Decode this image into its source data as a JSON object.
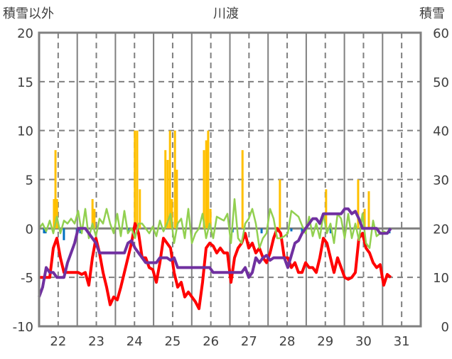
{
  "chart_data": {
    "type": "line",
    "title": "川渡",
    "left_axis_label": "積雪以外",
    "right_axis_label": "積雪",
    "left_ylim": [
      -10,
      20
    ],
    "left_ticks": [
      "20",
      "15",
      "10",
      "5",
      "0",
      "-5",
      "-10"
    ],
    "right_ylim": [
      0,
      60
    ],
    "right_ticks": [
      "60",
      "50",
      "40",
      "30",
      "20",
      "10",
      "0"
    ],
    "x_range_days": [
      0,
      10
    ],
    "x_ticks": [
      "22",
      "23",
      "24",
      "25",
      "26",
      "27",
      "28",
      "29",
      "30",
      "31"
    ],
    "grid": "dashed vertical at noon, solid vertical at midnight, dashed horizontal",
    "colors": {
      "red": "#ff0000",
      "green": "#92d050",
      "purple": "#7030a0",
      "orange": "#ffc000",
      "blue": "#0070c0",
      "grid": "#808080"
    },
    "series_step_days": 0.0931,
    "series": [
      {
        "name": "red",
        "axis": "left",
        "color": "#ff0000",
        "values": [
          -5,
          -5,
          -5,
          -5,
          -2,
          -1,
          -3,
          -4.5,
          -4.5,
          -4.5,
          -4.5,
          -4.5,
          -4.7,
          -4.5,
          -5.8,
          -3,
          -1,
          -2.5,
          -4.5,
          -6,
          -7.8,
          -7,
          -7.3,
          -6,
          -4.5,
          -3,
          -1.5,
          0.5,
          -0.5,
          -3,
          -3,
          -4,
          -4.2,
          -5.5,
          -3.5,
          -1,
          -1.5,
          -2,
          -4.5,
          -6,
          -5.5,
          -7,
          -6.5,
          -7,
          -7.5,
          -8.2,
          -5.5,
          -2,
          -1.5,
          -1.8,
          -2.5,
          -2,
          -2.5,
          -2.5,
          -5.5,
          -3,
          -2,
          -1.5,
          -0.5,
          -2,
          -1.5,
          -2.5,
          -2,
          -3,
          -3.5,
          -2.5,
          -1,
          0,
          -0.5,
          -3,
          -3,
          -4,
          -3.5,
          -4.5,
          -4.5,
          -3.5,
          -4,
          -4,
          -4.5,
          -3,
          -1,
          -1.5,
          -3,
          -4.5,
          -3,
          -4,
          -5,
          -5.2,
          -5,
          -4.5,
          -1,
          -0.5,
          -2,
          -2.5,
          -3.5,
          -4,
          -3.7,
          -5.8,
          -4.7,
          -5
        ]
      },
      {
        "name": "green",
        "axis": "left",
        "color": "#92d050",
        "values": [
          0,
          0.5,
          -0.3,
          0.8,
          -0.5,
          1.2,
          -0.5,
          0.8,
          0.5,
          1,
          0.5,
          1.8,
          -0.5,
          2,
          -1,
          0.5,
          -0.8,
          1,
          0.5,
          2,
          0.5,
          -0.5,
          1.5,
          -0.8,
          1.8,
          -0.5,
          0,
          -1,
          0.5,
          0.5,
          0,
          -0.5,
          0.2,
          -0.8,
          0.8,
          -0.3,
          0.5,
          1.5,
          -1.5,
          0.5,
          1,
          -1,
          2,
          -1.5,
          -0.5,
          0,
          1.5,
          -1,
          0.5,
          -1,
          1.2,
          1,
          0.8,
          1.5,
          -1.5,
          3,
          -1,
          -1.5,
          0.5,
          1,
          2,
          0.5,
          -2,
          -1,
          -0.5,
          2,
          1,
          -1,
          -1,
          -0.8,
          -0.5,
          1.8,
          1.5,
          1.2,
          0.3,
          -0.5,
          1.2,
          -0.8,
          0.5,
          -1,
          1.5,
          -0.5,
          0.5,
          -1.5,
          1.5,
          1,
          -1,
          1.5,
          -1,
          0.5,
          -1.2,
          1.5,
          -1.5,
          -2,
          0.8,
          -0.8,
          -0.5,
          -0.3,
          -0.5,
          0
        ]
      },
      {
        "name": "purple",
        "axis": "right",
        "color": "#7030a0",
        "values": [
          6,
          8,
          12,
          11,
          11,
          10,
          10,
          10,
          13,
          15,
          17,
          20,
          20,
          20,
          19,
          18,
          17,
          15,
          15,
          15,
          15,
          15,
          15,
          15,
          15,
          17,
          17.5,
          16,
          15,
          14,
          13,
          13,
          13,
          13,
          14,
          14,
          14,
          13.5,
          14,
          12,
          12,
          12,
          12,
          12,
          12,
          12,
          12,
          12,
          12,
          11,
          11,
          11,
          11,
          11,
          11,
          11,
          11,
          11,
          12,
          10,
          11,
          14,
          13,
          14,
          14.5,
          13.5,
          14,
          14,
          14,
          14,
          12,
          14.5,
          17,
          17.5,
          19,
          20,
          21,
          22,
          22,
          21,
          23,
          23,
          23,
          23,
          23,
          23,
          24,
          24,
          23,
          23.5,
          22,
          20,
          20,
          20,
          20,
          20,
          19,
          19,
          19,
          20
        ]
      }
    ],
    "bars": [
      {
        "name": "orange",
        "axis": "left",
        "color": "#ffc000",
        "points": [
          [
            0.39,
            3
          ],
          [
            0.43,
            8
          ],
          [
            0.47,
            3
          ],
          [
            1.4,
            3
          ],
          [
            1.45,
            2
          ],
          [
            2.51,
            10
          ],
          [
            2.57,
            10
          ],
          [
            2.64,
            4
          ],
          [
            3.31,
            8
          ],
          [
            3.37,
            7
          ],
          [
            3.43,
            10
          ],
          [
            3.48,
            3
          ],
          [
            3.56,
            10
          ],
          [
            3.61,
            6
          ],
          [
            4.32,
            8
          ],
          [
            4.38,
            9
          ],
          [
            4.43,
            10
          ],
          [
            4.49,
            2
          ],
          [
            5.33,
            8
          ],
          [
            6.31,
            5
          ],
          [
            7.52,
            4
          ],
          [
            8.36,
            5
          ],
          [
            8.53,
            2
          ],
          [
            8.64,
            3.8
          ]
        ]
      },
      {
        "name": "blue",
        "axis": "left",
        "color": "#0070c0",
        "points": [
          [
            0.13,
            -0.5
          ],
          [
            0.17,
            -0.5
          ],
          [
            0.65,
            -1.2
          ],
          [
            0.99,
            -0.5
          ],
          [
            1.08,
            -0.5
          ],
          [
            2.33,
            -0.3
          ],
          [
            5.07,
            -0.4
          ],
          [
            5.83,
            -0.5
          ],
          [
            6.61,
            -0.3
          ],
          [
            6.89,
            -0.5
          ],
          [
            7.64,
            -0.5
          ],
          [
            9.18,
            -0.5
          ]
        ]
      }
    ]
  }
}
